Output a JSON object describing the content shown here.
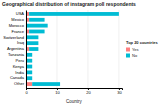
{
  "chart_data": {
    "type": "bar",
    "orientation": "horizontal",
    "stacked": true,
    "title": "Geographical distribution of instagram poll respondents",
    "xlabel": "Country",
    "legend_title": "Top 20 countries",
    "categories": [
      "USA",
      "Mexico",
      "Morocco",
      "France",
      "Switzerland",
      "Iraq",
      "Argentina",
      "Tanzania",
      "Peru",
      "Kenya",
      "India",
      "Canada",
      "Other"
    ],
    "series": [
      {
        "name": "Yes",
        "color": "#FF7F7F",
        "values": [
          1,
          1,
          0,
          1,
          0,
          0,
          1,
          0,
          0,
          0,
          0,
          0,
          2
        ]
      },
      {
        "name": "No",
        "color": "#00BCD4",
        "values": [
          29,
          5,
          7,
          5,
          4,
          4,
          3,
          2,
          2,
          2,
          2,
          2,
          9
        ]
      }
    ],
    "xlim": [
      0,
      31
    ],
    "xticks": [
      0,
      10,
      20,
      30
    ],
    "grid": true,
    "legend": "right"
  }
}
